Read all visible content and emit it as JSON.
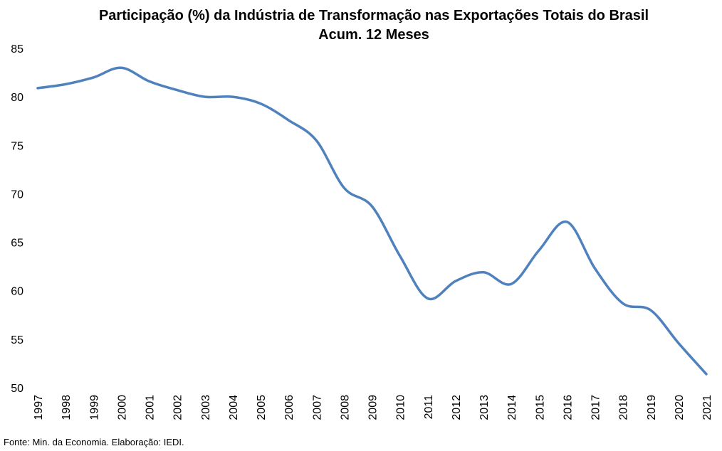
{
  "chart_data": {
    "type": "line",
    "title": "Participação (%) da Indústria de Transformação nas Exportações Totais do Brasil",
    "subtitle": "Acum. 12 Meses",
    "x": [
      "1997",
      "1998",
      "1999",
      "2000",
      "2001",
      "2002",
      "2003",
      "2004",
      "2005",
      "2006",
      "2007",
      "2008",
      "2009",
      "2010",
      "2011",
      "2012",
      "2013",
      "2014",
      "2015",
      "2016",
      "2017",
      "2018",
      "2019",
      "2020",
      "2021"
    ],
    "series": [
      {
        "values": [
          80.9,
          81.3,
          82.0,
          83.0,
          81.6,
          80.7,
          80.0,
          80.0,
          79.3,
          77.6,
          75.5,
          70.6,
          68.7,
          63.6,
          59.2,
          61.0,
          61.9,
          60.7,
          64.2,
          67.1,
          62.3,
          58.7,
          58.0,
          54.6,
          51.4
        ],
        "color": "#4F81BD"
      }
    ],
    "yticks": [
      "50",
      "55",
      "60",
      "65",
      "70",
      "75",
      "80",
      "85"
    ],
    "ylim": [
      50,
      85
    ],
    "grid": false,
    "legend": "none"
  },
  "footer": {
    "source": "Fonte: Min. da Economia. Elaboração: IEDI."
  }
}
